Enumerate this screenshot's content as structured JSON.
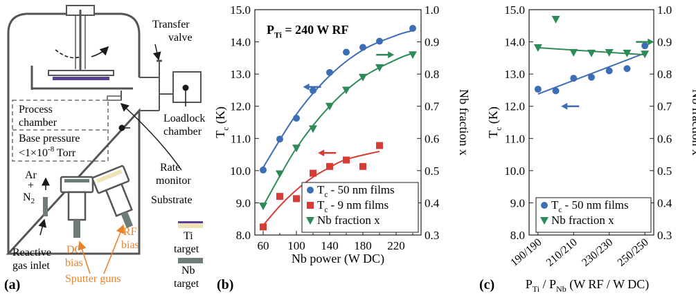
{
  "colors": {
    "blue": "#3d6db5",
    "red": "#d63b36",
    "green": "#2e8b57",
    "orange": "#e8822e",
    "substrate": "#5b3f96",
    "ti_target": "#efe3b6",
    "nb_target": "#6f7d79",
    "chamber": "#555555"
  },
  "panel_a": {
    "label": "(a)",
    "transfer_valve": [
      "Transfer",
      "valve"
    ],
    "process_chamber": [
      "Process",
      "chamber"
    ],
    "base_pressure_line1": "Base pressure",
    "base_pressure_line2_prefix": "<1×10",
    "base_pressure_exp": "-8",
    "base_pressure_line2_suffix": " Torr",
    "loadlock": [
      "Loadlock",
      "chamber"
    ],
    "rate_monitor": [
      "Rate",
      "monitor"
    ],
    "gas_ar": "Ar",
    "gas_plus": "+",
    "gas_n": "N",
    "gas_n_sub": "2",
    "reactive_gas_inlet": [
      "Reactive",
      "gas inlet"
    ],
    "dc_bias": [
      "DC",
      "bias"
    ],
    "rf_bias": [
      "RF",
      "bias"
    ],
    "sputter_guns": "Sputter guns",
    "legend": [
      {
        "label": [
          "Substrate"
        ],
        "icon": "substrate-swatch"
      },
      {
        "label": [
          "Ti",
          "target"
        ],
        "icon": "ti-target-swatch"
      },
      {
        "label": [
          "Nb",
          "target"
        ],
        "icon": "nb-target-swatch"
      }
    ]
  },
  "chart_data": [
    {
      "panel": "(b)",
      "type": "scatter",
      "annotation_main": "P",
      "annotation_sub": "Ti",
      "annotation_rest": " = 240 W RF",
      "xlabel": "Nb power (W DC)",
      "ylabel_main": "T",
      "ylabel_sub": "c",
      "ylabel_rest": " (K)",
      "y2label": "Nb fraction x",
      "xlim": [
        50,
        250
      ],
      "ylim": [
        8.0,
        15.0
      ],
      "y2lim": [
        0.3,
        1.0
      ],
      "xticks": [
        60,
        100,
        140,
        180,
        220
      ],
      "yticks": [
        "8.0",
        "9.0",
        "10.0",
        "11.0",
        "12.0",
        "13.0",
        "14.0",
        "15.0"
      ],
      "y2ticks": [
        "0.3",
        "0.4",
        "0.5",
        "0.6",
        "0.7",
        "0.8",
        "0.9",
        "1.0"
      ],
      "series": [
        {
          "name": "50 nm films",
          "legend_main": "T",
          "legend_sub": "c",
          "legend_rest": " - 50 nm films",
          "axis": "left",
          "marker": "circle",
          "color": "#3d6db5",
          "x": [
            60,
            80,
            100,
            120,
            140,
            160,
            180,
            200,
            240
          ],
          "y": [
            10.02,
            10.98,
            11.63,
            12.49,
            13.05,
            13.68,
            13.83,
            14.02,
            14.42
          ],
          "fit": [
            [
              60,
              10.1
            ],
            [
              100,
              11.75
            ],
            [
              140,
              12.95
            ],
            [
              180,
              13.75
            ],
            [
              220,
              14.2
            ],
            [
              240,
              14.35
            ]
          ]
        },
        {
          "name": "9 nm films",
          "legend_main": "T",
          "legend_sub": "c",
          "legend_rest": " - 9 nm films",
          "axis": "left",
          "marker": "square",
          "color": "#d63b36",
          "x": [
            60,
            80,
            100,
            120,
            140,
            160,
            180,
            200
          ],
          "y": [
            8.25,
            9.2,
            9.13,
            9.92,
            10.13,
            10.33,
            10.13,
            10.78
          ],
          "fit": [
            [
              60,
              8.3
            ],
            [
              80,
              8.9
            ],
            [
              100,
              9.4
            ],
            [
              120,
              9.8
            ],
            [
              140,
              10.1
            ],
            [
              160,
              10.35
            ],
            [
              200,
              10.6
            ]
          ]
        },
        {
          "name": "Nb fraction x",
          "legend_main": "Nb fraction x",
          "legend_sub": "",
          "legend_rest": "",
          "axis": "right",
          "marker": "triangle-down",
          "color": "#2e8b57",
          "x": [
            60,
            80,
            100,
            120,
            140,
            160,
            180,
            200,
            240
          ],
          "y": [
            0.39,
            0.49,
            0.57,
            0.63,
            0.7,
            0.75,
            0.79,
            0.82,
            0.86
          ],
          "fit": [
            [
              60,
              0.39
            ],
            [
              100,
              0.57
            ],
            [
              140,
              0.7
            ],
            [
              180,
              0.79
            ],
            [
              220,
              0.845
            ],
            [
              240,
              0.865
            ]
          ]
        }
      ],
      "arrows": [
        {
          "series": "blue",
          "dir": "left",
          "x": 108,
          "y": 12.6
        },
        {
          "series": "red",
          "dir": "left",
          "x": 126,
          "y": 10.55
        },
        {
          "series": "green",
          "dir": "right",
          "x": 196,
          "y": 0.86
        }
      ]
    },
    {
      "panel": "(c)",
      "type": "scatter",
      "xlabel_p1": "P",
      "xlabel_s1": "Ti",
      "xlabel_mid": " / P",
      "xlabel_s2": "Nb",
      "xlabel_rest": " (W RF / W DC)",
      "ylabel_main": "T",
      "ylabel_sub": "c",
      "ylabel_rest": " (K)",
      "y2label": "Nb fraction x",
      "xlim": [
        185,
        255
      ],
      "ylim": [
        8.0,
        15.0
      ],
      "y2lim": [
        0.3,
        1.0
      ],
      "xticks": [
        "190/190",
        "210/210",
        "230/230",
        "250/250"
      ],
      "xtick_values": [
        190,
        210,
        230,
        250
      ],
      "yticks": [
        "8.0",
        "9.0",
        "10.0",
        "11.0",
        "12.0",
        "13.0",
        "14.0",
        "15.0"
      ],
      "y2ticks": [
        "0.3",
        "0.4",
        "0.5",
        "0.6",
        "0.7",
        "0.8",
        "0.9",
        "1.0"
      ],
      "series": [
        {
          "name": "50 nm films",
          "legend_main": "T",
          "legend_sub": "c",
          "legend_rest": " - 50 nm films",
          "axis": "left",
          "marker": "circle",
          "color": "#3d6db5",
          "x": [
            190,
            200,
            210,
            220,
            230,
            240,
            250
          ],
          "y": [
            12.53,
            12.48,
            12.87,
            12.9,
            13.1,
            13.17,
            13.88
          ],
          "fit": [
            [
              190,
              12.38
            ],
            [
              250,
              13.65
            ]
          ]
        },
        {
          "name": "Nb fraction x",
          "legend_main": "Nb fraction x",
          "legend_sub": "",
          "legend_rest": "",
          "axis": "right",
          "marker": "triangle-down",
          "color": "#2e8b57",
          "x": [
            190,
            200,
            210,
            220,
            230,
            240,
            250
          ],
          "y": [
            0.882,
            0.97,
            0.867,
            0.865,
            0.867,
            0.865,
            0.862
          ],
          "fit": [
            [
              190,
              0.882
            ],
            [
              250,
              0.86
            ]
          ]
        }
      ],
      "arrows": [
        {
          "series": "blue",
          "dir": "left",
          "x": 203,
          "y": 12.0
        },
        {
          "series": "green",
          "dir": "right",
          "x": 245,
          "y": 0.9
        }
      ]
    }
  ]
}
